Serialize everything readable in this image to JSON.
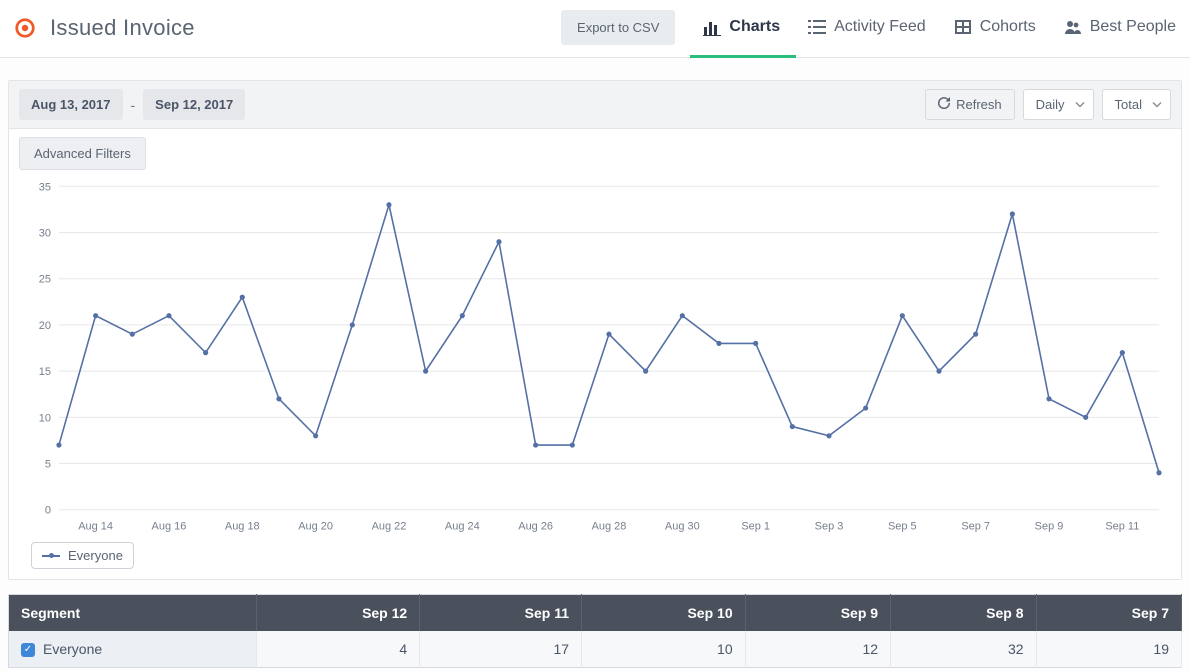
{
  "header": {
    "title": "Issued Invoice",
    "export_label": "Export to CSV",
    "nav": [
      {
        "label": "Charts",
        "icon": "bars",
        "active": true
      },
      {
        "label": "Activity Feed",
        "icon": "list",
        "active": false
      },
      {
        "label": "Cohorts",
        "icon": "grid",
        "active": false
      },
      {
        "label": "Best People",
        "icon": "people",
        "active": false
      }
    ],
    "logo_color": "#f05a28"
  },
  "controls": {
    "date_from": "Aug 13, 2017",
    "date_to": "Sep 12, 2017",
    "refresh_label": "Refresh",
    "granularity": "Daily",
    "aggregation": "Total",
    "advanced_filters_label": "Advanced Filters"
  },
  "chart": {
    "type": "line",
    "series_name": "Everyone",
    "line_color": "#5570a5",
    "dot_color": "#5570a5",
    "background_color": "#ffffff",
    "grid_color": "#e8e8e8",
    "axis_label_color": "#767f8d",
    "y": {
      "min": 0,
      "max": 35,
      "step": 5,
      "fontsize": 11
    },
    "x_tick_every": 2,
    "x_label_fmt": "short",
    "x_fontsize": 11,
    "points": [
      {
        "date": "Aug 13",
        "v": 7
      },
      {
        "date": "Aug 14",
        "v": 21
      },
      {
        "date": "Aug 15",
        "v": 19
      },
      {
        "date": "Aug 16",
        "v": 21
      },
      {
        "date": "Aug 17",
        "v": 17
      },
      {
        "date": "Aug 18",
        "v": 23
      },
      {
        "date": "Aug 19",
        "v": 12
      },
      {
        "date": "Aug 20",
        "v": 8
      },
      {
        "date": "Aug 21",
        "v": 20
      },
      {
        "date": "Aug 22",
        "v": 33
      },
      {
        "date": "Aug 23",
        "v": 15
      },
      {
        "date": "Aug 24",
        "v": 21
      },
      {
        "date": "Aug 25",
        "v": 29
      },
      {
        "date": "Aug 26",
        "v": 7
      },
      {
        "date": "Aug 27",
        "v": 7
      },
      {
        "date": "Aug 28",
        "v": 19
      },
      {
        "date": "Aug 29",
        "v": 15
      },
      {
        "date": "Aug 30",
        "v": 21
      },
      {
        "date": "Aug 31",
        "v": 18
      },
      {
        "date": "Sep 1",
        "v": 18
      },
      {
        "date": "Sep 2",
        "v": 9
      },
      {
        "date": "Sep 3",
        "v": 8
      },
      {
        "date": "Sep 4",
        "v": 11
      },
      {
        "date": "Sep 5",
        "v": 21
      },
      {
        "date": "Sep 6",
        "v": 15
      },
      {
        "date": "Sep 7",
        "v": 19
      },
      {
        "date": "Sep 8",
        "v": 32
      },
      {
        "date": "Sep 9",
        "v": 12
      },
      {
        "date": "Sep 10",
        "v": 10
      },
      {
        "date": "Sep 11",
        "v": 17
      },
      {
        "date": "Sep 12",
        "v": 4
      }
    ]
  },
  "table": {
    "segment_header": "Segment",
    "columns": [
      "Sep 12",
      "Sep 11",
      "Sep 10",
      "Sep 9",
      "Sep 8",
      "Sep 7"
    ],
    "rows": [
      {
        "segment": "Everyone",
        "checked": true,
        "values": [
          4,
          17,
          10,
          12,
          32,
          19
        ]
      }
    ],
    "header_bg": "#4a515c",
    "header_fg": "#ffffff",
    "row_bg": "#f7f8fa",
    "segment_cell_bg": "#eceff3",
    "checkbox_color": "#3e86d6"
  }
}
